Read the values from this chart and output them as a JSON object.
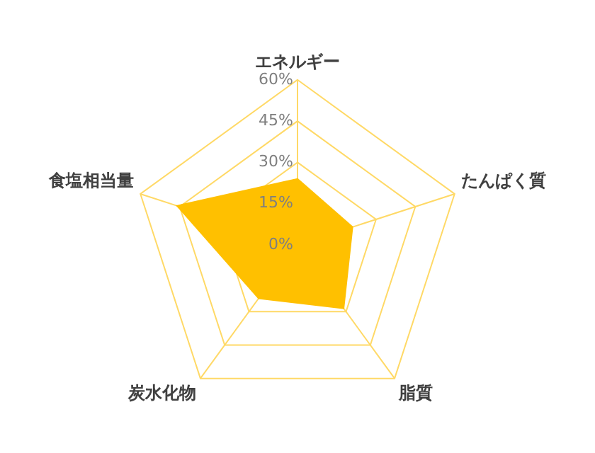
{
  "chart_data": {
    "type": "radar",
    "categories": [
      "エネルギー",
      "たんぱく質",
      "脂質",
      "炭水化物",
      "食塩相当量"
    ],
    "series": [
      {
        "color": "#ffc000",
        "values": [
          24,
          21,
          28.5,
          24,
          46
        ]
      }
    ],
    "ylim": [
      0,
      60
    ],
    "yticks": [
      {
        "value": 0,
        "label": "0%"
      },
      {
        "value": 15,
        "label": "15%"
      },
      {
        "value": 30,
        "label": "30%"
      },
      {
        "value": 45,
        "label": "45%"
      },
      {
        "value": 60,
        "label": "60%"
      }
    ],
    "grid": true,
    "legend": false,
    "marker": "none"
  }
}
